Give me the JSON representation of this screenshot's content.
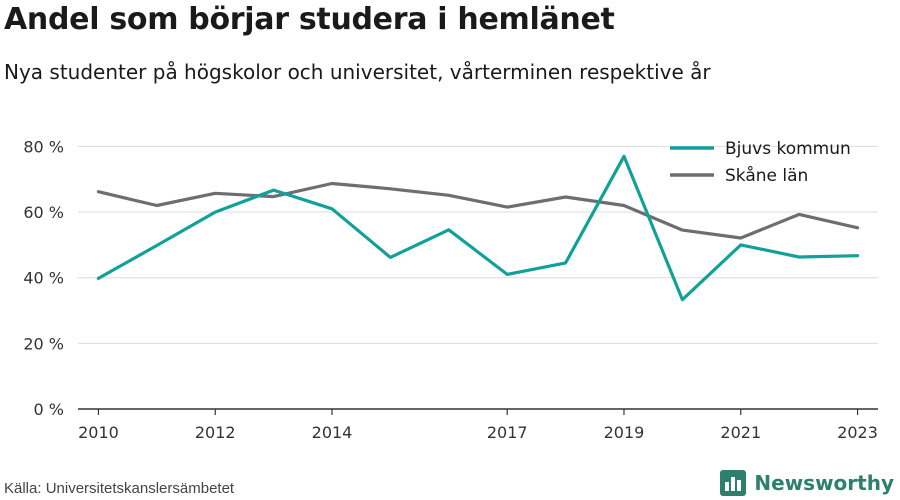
{
  "title": "Andel som börjar studera i hemlänet",
  "subtitle": "Nya studenter på högskolor och universitet, vårterminen respektive år",
  "source": "Källa: Universitetskanslersämbetet",
  "brand": {
    "name": "Newsworthy",
    "icon": "bar-chart-logo-icon",
    "color": "#2f7f6e"
  },
  "chart_data": {
    "type": "line",
    "x": [
      2010,
      2011,
      2012,
      2013,
      2014,
      2015,
      2016,
      2017,
      2018,
      2019,
      2020,
      2021,
      2022,
      2023
    ],
    "x_tick_labels": [
      "2010",
      "2012",
      "2014",
      "2017",
      "2019",
      "2021",
      "2023"
    ],
    "y_tick_labels": [
      "0 %",
      "20 %",
      "40 %",
      "60 %",
      "80 %"
    ],
    "y_ticks": [
      0,
      20,
      40,
      60,
      80
    ],
    "ylim": [
      0,
      85
    ],
    "xlim": [
      2009.65,
      2023.35
    ],
    "grid": true,
    "legend_position": "top-right",
    "series": [
      {
        "name": "Bjuvs kommun",
        "color": "#12a198",
        "values": [
          39.8,
          49.8,
          60.0,
          66.7,
          61.0,
          46.2,
          54.6,
          41.0,
          44.5,
          77.0,
          33.3,
          50.0,
          46.3,
          46.7
        ]
      },
      {
        "name": "Skåne län",
        "color": "#6e6d73",
        "values": [
          66.2,
          62.0,
          65.7,
          64.7,
          68.7,
          67.1,
          65.1,
          61.5,
          64.6,
          62.0,
          54.5,
          52.1,
          59.3,
          55.2
        ]
      }
    ]
  }
}
